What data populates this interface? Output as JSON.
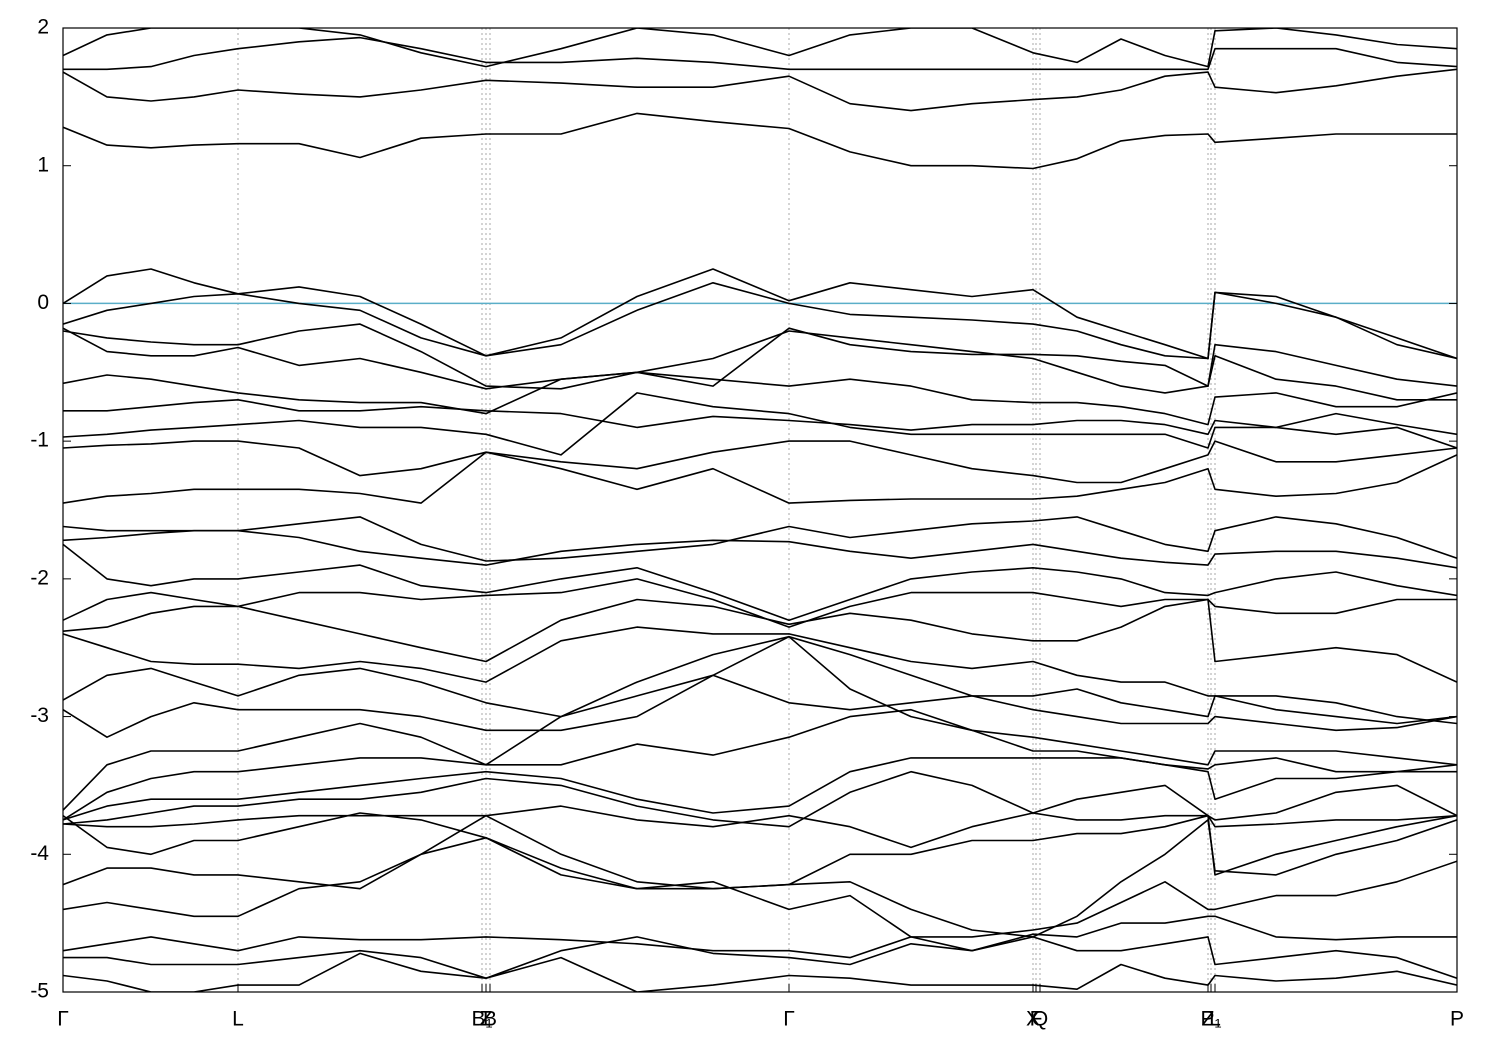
{
  "chart_data": {
    "type": "line",
    "xlim": [
      0,
      1394
    ],
    "ylim": [
      -5,
      2
    ],
    "yticks": [
      -5,
      -4,
      -3,
      -2,
      -1,
      0,
      1,
      2
    ],
    "xticks": [
      {
        "value": 0,
        "label": "Γ"
      },
      {
        "value": 175,
        "label": "L"
      },
      {
        "value": 419,
        "label": "B₁"
      },
      {
        "value": 423,
        "label": "Z"
      },
      {
        "value": 427,
        "label": "B"
      },
      {
        "value": 726,
        "label": "Γ"
      },
      {
        "value": 970,
        "label": "X"
      },
      {
        "value": 973,
        "label": "F"
      },
      {
        "value": 977,
        "label": "Q"
      },
      {
        "value": 1145,
        "label": "Z"
      },
      {
        "value": 1148,
        "label": "P₁"
      },
      {
        "value": 1152,
        "label": "L"
      },
      {
        "value": 1394,
        "label": "P"
      }
    ],
    "grid": "x",
    "line_color": "#000000",
    "hlines": [
      {
        "value": 0,
        "color": "#5aaec8"
      }
    ],
    "x": [
      0,
      44,
      88,
      131,
      175,
      236,
      297,
      358,
      423,
      498,
      574,
      650,
      726,
      787,
      848,
      909,
      970,
      1014,
      1058,
      1102,
      1145,
      1152,
      1213,
      1273,
      1334,
      1394
    ],
    "series": [
      {
        "values": [
          1.28,
          1.15,
          1.13,
          1.15,
          1.16,
          1.16,
          1.06,
          1.2,
          1.23,
          1.23,
          1.38,
          1.32,
          1.27,
          1.1,
          1.0,
          1.0,
          0.98,
          1.05,
          1.18,
          1.22,
          1.23,
          1.17,
          1.2,
          1.23,
          1.23,
          1.23
        ]
      },
      {
        "values": [
          1.68,
          1.5,
          1.47,
          1.5,
          1.55,
          1.52,
          1.5,
          1.55,
          1.62,
          1.6,
          1.57,
          1.57,
          1.65,
          1.45,
          1.4,
          1.45,
          1.48,
          1.5,
          1.55,
          1.65,
          1.68,
          1.57,
          1.53,
          1.58,
          1.65,
          1.7
        ]
      },
      {
        "values": [
          1.7,
          1.7,
          1.72,
          1.8,
          1.85,
          1.9,
          1.93,
          1.85,
          1.75,
          1.75,
          1.78,
          1.75,
          1.7,
          1.7,
          1.7,
          1.7,
          1.7,
          1.7,
          1.7,
          1.7,
          1.7,
          1.85,
          1.85,
          1.85,
          1.75,
          1.72
        ]
      },
      {
        "values": [
          1.8,
          1.95,
          2.0,
          2.0,
          2.0,
          2.0,
          1.95,
          1.82,
          1.72,
          1.85,
          2.0,
          1.95,
          1.8,
          1.95,
          2.0,
          2.0,
          1.82,
          1.75,
          1.92,
          1.8,
          1.72,
          1.98,
          2.0,
          1.95,
          1.88,
          1.85
        ]
      },
      {
        "values": [
          0.0,
          0.2,
          0.25,
          0.15,
          0.07,
          0.12,
          0.05,
          -0.15,
          -0.38,
          -0.25,
          0.05,
          0.25,
          0.02,
          0.15,
          0.1,
          0.05,
          0.1,
          -0.1,
          -0.2,
          -0.3,
          -0.4,
          0.08,
          0.05,
          -0.1,
          -0.25,
          -0.4
        ]
      },
      {
        "values": [
          -0.15,
          -0.05,
          0.0,
          0.05,
          0.07,
          0.0,
          -0.05,
          -0.25,
          -0.38,
          -0.3,
          -0.05,
          0.15,
          0.0,
          -0.08,
          -0.1,
          -0.12,
          -0.15,
          -0.2,
          -0.3,
          -0.38,
          -0.4,
          0.08,
          0.0,
          -0.1,
          -0.3,
          -0.4
        ]
      },
      {
        "values": [
          -0.2,
          -0.25,
          -0.28,
          -0.3,
          -0.3,
          -0.2,
          -0.15,
          -0.35,
          -0.6,
          -0.62,
          -0.5,
          -0.4,
          -0.2,
          -0.25,
          -0.3,
          -0.35,
          -0.4,
          -0.5,
          -0.6,
          -0.65,
          -0.6,
          -0.3,
          -0.35,
          -0.45,
          -0.55,
          -0.6
        ]
      },
      {
        "values": [
          -0.18,
          -0.35,
          -0.38,
          -0.38,
          -0.32,
          -0.45,
          -0.4,
          -0.5,
          -0.62,
          -0.55,
          -0.5,
          -0.6,
          -0.18,
          -0.3,
          -0.35,
          -0.37,
          -0.37,
          -0.38,
          -0.42,
          -0.45,
          -0.6,
          -0.38,
          -0.55,
          -0.6,
          -0.7,
          -0.7
        ]
      },
      {
        "values": [
          -0.58,
          -0.52,
          -0.55,
          -0.6,
          -0.65,
          -0.7,
          -0.72,
          -0.72,
          -0.8,
          -0.55,
          -0.5,
          -0.55,
          -0.6,
          -0.55,
          -0.6,
          -0.7,
          -0.72,
          -0.72,
          -0.75,
          -0.8,
          -0.88,
          -0.68,
          -0.65,
          -0.75,
          -0.75,
          -0.65
        ]
      },
      {
        "values": [
          -0.78,
          -0.78,
          -0.75,
          -0.72,
          -0.7,
          -0.78,
          -0.78,
          -0.75,
          -0.78,
          -0.8,
          -0.9,
          -0.82,
          -0.85,
          -0.88,
          -0.92,
          -0.88,
          -0.88,
          -0.85,
          -0.85,
          -0.88,
          -0.95,
          -0.85,
          -0.9,
          -0.8,
          -0.88,
          -0.95
        ]
      },
      {
        "values": [
          -0.97,
          -0.95,
          -0.92,
          -0.9,
          -0.88,
          -0.85,
          -0.9,
          -0.9,
          -0.95,
          -1.1,
          -0.65,
          -0.75,
          -0.8,
          -0.9,
          -0.95,
          -0.95,
          -0.95,
          -0.95,
          -0.95,
          -0.95,
          -1.05,
          -0.9,
          -0.9,
          -0.95,
          -0.9,
          -1.05
        ]
      },
      {
        "values": [
          -1.05,
          -1.03,
          -1.02,
          -1.0,
          -1.0,
          -1.05,
          -1.25,
          -1.2,
          -1.08,
          -1.15,
          -1.2,
          -1.08,
          -1.0,
          -1.0,
          -1.1,
          -1.2,
          -1.25,
          -1.3,
          -1.3,
          -1.2,
          -1.1,
          -1.0,
          -1.15,
          -1.15,
          -1.1,
          -1.05
        ]
      },
      {
        "values": [
          -1.45,
          -1.4,
          -1.38,
          -1.35,
          -1.35,
          -1.35,
          -1.38,
          -1.45,
          -1.08,
          -1.2,
          -1.35,
          -1.2,
          -1.45,
          -1.43,
          -1.42,
          -1.42,
          -1.42,
          -1.4,
          -1.35,
          -1.3,
          -1.2,
          -1.35,
          -1.4,
          -1.38,
          -1.3,
          -1.1
        ]
      },
      {
        "values": [
          -1.62,
          -1.65,
          -1.65,
          -1.65,
          -1.65,
          -1.6,
          -1.55,
          -1.75,
          -1.87,
          -1.85,
          -1.8,
          -1.75,
          -1.62,
          -1.7,
          -1.65,
          -1.6,
          -1.58,
          -1.55,
          -1.65,
          -1.75,
          -1.8,
          -1.65,
          -1.55,
          -1.6,
          -1.7,
          -1.85
        ]
      },
      {
        "values": [
          -1.72,
          -1.7,
          -1.67,
          -1.65,
          -1.65,
          -1.7,
          -1.8,
          -1.85,
          -1.9,
          -1.8,
          -1.75,
          -1.72,
          -1.73,
          -1.8,
          -1.85,
          -1.8,
          -1.75,
          -1.8,
          -1.85,
          -1.88,
          -1.9,
          -1.82,
          -1.8,
          -1.8,
          -1.85,
          -1.92
        ]
      },
      {
        "values": [
          -1.75,
          -2.0,
          -2.05,
          -2.0,
          -2.0,
          -1.95,
          -1.9,
          -2.05,
          -2.1,
          -2.0,
          -1.92,
          -2.1,
          -2.3,
          -2.15,
          -2.0,
          -1.95,
          -1.92,
          -1.95,
          -2.0,
          -2.1,
          -2.12,
          -2.1,
          -2.0,
          -1.95,
          -2.05,
          -2.12
        ]
      },
      {
        "values": [
          -2.3,
          -2.15,
          -2.1,
          -2.15,
          -2.2,
          -2.1,
          -2.1,
          -2.15,
          -2.12,
          -2.1,
          -2.0,
          -2.15,
          -2.35,
          -2.2,
          -2.1,
          -2.1,
          -2.1,
          -2.15,
          -2.2,
          -2.15,
          -2.15,
          -2.2,
          -2.25,
          -2.25,
          -2.15,
          -2.15
        ]
      },
      {
        "values": [
          -2.38,
          -2.35,
          -2.25,
          -2.2,
          -2.2,
          -2.3,
          -2.4,
          -2.5,
          -2.6,
          -2.3,
          -2.15,
          -2.2,
          -2.33,
          -2.25,
          -2.3,
          -2.4,
          -2.45,
          -2.45,
          -2.35,
          -2.2,
          -2.15,
          -2.6,
          -2.55,
          -2.5,
          -2.55,
          -2.75
        ]
      },
      {
        "values": [
          -2.4,
          -2.5,
          -2.6,
          -2.62,
          -2.62,
          -2.65,
          -2.6,
          -2.65,
          -2.75,
          -2.45,
          -2.35,
          -2.4,
          -2.4,
          -2.5,
          -2.6,
          -2.65,
          -2.6,
          -2.7,
          -2.75,
          -2.75,
          -2.85,
          -2.85,
          -2.85,
          -2.9,
          -3.0,
          -3.05
        ]
      },
      {
        "values": [
          -2.88,
          -2.7,
          -2.65,
          -2.75,
          -2.85,
          -2.7,
          -2.65,
          -2.75,
          -2.9,
          -3.0,
          -2.85,
          -2.7,
          -2.9,
          -2.95,
          -2.9,
          -2.85,
          -2.85,
          -2.8,
          -2.9,
          -2.95,
          -3.0,
          -2.85,
          -2.95,
          -3.0,
          -3.05,
          -3.0
        ]
      },
      {
        "values": [
          -2.95,
          -3.15,
          -3.0,
          -2.9,
          -2.95,
          -2.95,
          -2.95,
          -3.0,
          -3.1,
          -3.1,
          -3.0,
          -2.7,
          -2.42,
          -2.55,
          -2.7,
          -2.85,
          -2.95,
          -3.0,
          -3.05,
          -3.05,
          -3.05,
          -3.0,
          -3.05,
          -3.1,
          -3.08,
          -3.0
        ]
      },
      {
        "values": [
          -3.68,
          -3.35,
          -3.25,
          -3.25,
          -3.25,
          -3.15,
          -3.05,
          -3.15,
          -3.35,
          -3.0,
          -2.75,
          -2.55,
          -2.42,
          -2.8,
          -3.0,
          -3.1,
          -3.15,
          -3.2,
          -3.25,
          -3.3,
          -3.35,
          -3.25,
          -3.25,
          -3.25,
          -3.3,
          -3.35
        ]
      },
      {
        "values": [
          -3.75,
          -3.55,
          -3.45,
          -3.4,
          -3.4,
          -3.35,
          -3.3,
          -3.3,
          -3.35,
          -3.35,
          -3.2,
          -3.28,
          -3.15,
          -3.0,
          -2.95,
          -3.1,
          -3.25,
          -3.25,
          -3.3,
          -3.35,
          -3.38,
          -3.35,
          -3.3,
          -3.4,
          -3.4,
          -3.35
        ]
      },
      {
        "values": [
          -3.75,
          -3.65,
          -3.6,
          -3.6,
          -3.6,
          -3.55,
          -3.5,
          -3.45,
          -3.4,
          -3.45,
          -3.6,
          -3.7,
          -3.65,
          -3.4,
          -3.3,
          -3.3,
          -3.3,
          -3.3,
          -3.3,
          -3.35,
          -3.4,
          -3.6,
          -3.45,
          -3.45,
          -3.4,
          -3.4
        ]
      },
      {
        "values": [
          -3.78,
          -3.75,
          -3.7,
          -3.65,
          -3.65,
          -3.6,
          -3.6,
          -3.55,
          -3.45,
          -3.5,
          -3.65,
          -3.75,
          -3.8,
          -3.55,
          -3.4,
          -3.5,
          -3.7,
          -3.6,
          -3.55,
          -3.5,
          -3.72,
          -3.75,
          -3.7,
          -3.55,
          -3.5,
          -3.72
        ]
      },
      {
        "values": [
          -3.78,
          -3.8,
          -3.8,
          -3.78,
          -3.75,
          -3.72,
          -3.72,
          -3.72,
          -3.72,
          -3.65,
          -3.75,
          -3.8,
          -3.72,
          -3.8,
          -3.95,
          -3.8,
          -3.7,
          -3.75,
          -3.75,
          -3.72,
          -3.72,
          -3.8,
          -3.78,
          -3.75,
          -3.75,
          -3.72
        ]
      },
      {
        "values": [
          -3.72,
          -3.95,
          -4.0,
          -3.9,
          -3.9,
          -3.8,
          -3.7,
          -3.75,
          -3.88,
          -4.1,
          -4.25,
          -4.25,
          -4.22,
          -4.0,
          -4.0,
          -3.9,
          -3.9,
          -3.85,
          -3.85,
          -3.8,
          -3.72,
          -4.15,
          -4.0,
          -3.9,
          -3.8,
          -3.72
        ]
      },
      {
        "values": [
          -4.22,
          -4.1,
          -4.1,
          -4.15,
          -4.15,
          -4.2,
          -4.25,
          -4.0,
          -3.72,
          -4.0,
          -4.2,
          -4.25,
          -4.22,
          -4.2,
          -4.4,
          -4.55,
          -4.6,
          -4.45,
          -4.2,
          -4.0,
          -3.75,
          -4.12,
          -4.15,
          -4.0,
          -3.9,
          -3.75
        ]
      },
      {
        "values": [
          -4.4,
          -4.35,
          -4.4,
          -4.45,
          -4.45,
          -4.25,
          -4.2,
          -4.0,
          -3.88,
          -4.15,
          -4.25,
          -4.2,
          -4.4,
          -4.3,
          -4.6,
          -4.6,
          -4.55,
          -4.5,
          -4.35,
          -4.2,
          -4.4,
          -4.4,
          -4.3,
          -4.3,
          -4.2,
          -4.05
        ]
      },
      {
        "values": [
          -4.7,
          -4.65,
          -4.6,
          -4.65,
          -4.7,
          -4.6,
          -4.62,
          -4.62,
          -4.6,
          -4.62,
          -4.65,
          -4.7,
          -4.7,
          -4.75,
          -4.6,
          -4.7,
          -4.58,
          -4.6,
          -4.5,
          -4.5,
          -4.45,
          -4.45,
          -4.6,
          -4.62,
          -4.6,
          -4.6
        ]
      },
      {
        "values": [
          -4.75,
          -4.75,
          -4.8,
          -4.8,
          -4.8,
          -4.75,
          -4.7,
          -4.75,
          -4.9,
          -4.7,
          -4.6,
          -4.72,
          -4.75,
          -4.8,
          -4.65,
          -4.7,
          -4.6,
          -4.7,
          -4.7,
          -4.65,
          -4.6,
          -4.8,
          -4.75,
          -4.7,
          -4.75,
          -4.9
        ]
      },
      {
        "values": [
          -4.88,
          -4.92,
          -5.0,
          -5.0,
          -4.95,
          -4.95,
          -4.72,
          -4.85,
          -4.9,
          -4.75,
          -5.0,
          -4.95,
          -4.88,
          -4.9,
          -4.95,
          -4.95,
          -4.95,
          -4.98,
          -4.8,
          -4.9,
          -4.95,
          -4.88,
          -4.92,
          -4.9,
          -4.85,
          -4.95
        ]
      }
    ]
  }
}
